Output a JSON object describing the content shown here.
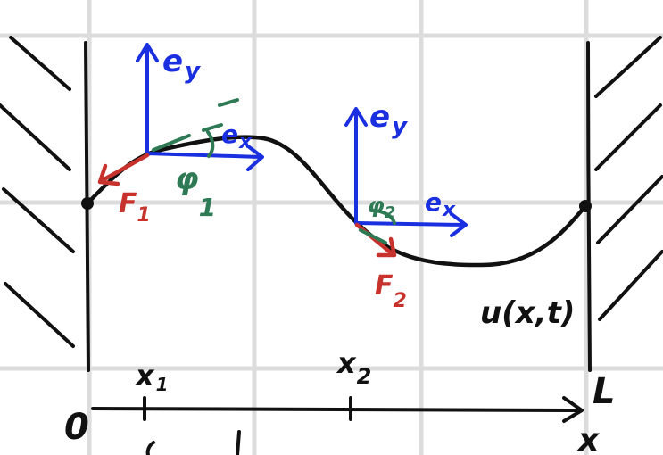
{
  "diagram": {
    "colors": {
      "background": "#ffffff",
      "grid": "#dcdcdc",
      "ink": "#111111",
      "basis": "#1a2fe0",
      "force": "#c8322c",
      "angle": "#2e7a55"
    },
    "labels": {
      "ey_left": "e",
      "ey_left_sub": "y",
      "ex_left": "e",
      "ex_left_sub": "x",
      "ey_right": "e",
      "ey_right_sub": "y",
      "ex_right": "e",
      "ex_right_sub": "x",
      "phi1": "φ",
      "phi1_sub": "1",
      "phi2": "φ",
      "phi2_sub": "2",
      "force1": "F",
      "force1_sub": "1",
      "force2": "F",
      "force2_sub": "2",
      "displacement": "u(x,t)",
      "origin": "0",
      "length": "L",
      "axis": "x",
      "x1": "x",
      "x1_sub": "1",
      "x2": "x",
      "x2_sub": "2"
    }
  }
}
